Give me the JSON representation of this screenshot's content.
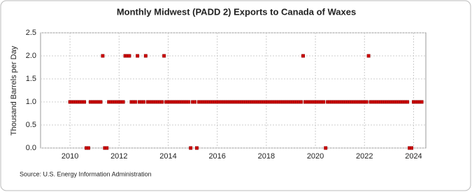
{
  "chart_data": {
    "type": "scatter",
    "title": "Monthly Midwest (PADD 2) Exports to Canada of Waxes",
    "y_label": "Thousand Barrels per Day",
    "source": "Source: U.S. Energy Information Administration",
    "xlim": [
      2008.8,
      2024.5
    ],
    "xticks": [
      2010,
      2012,
      2014,
      2016,
      2018,
      2020,
      2022,
      2024
    ],
    "ylim": [
      0,
      2.5
    ],
    "yticks": [
      {
        "value": 0,
        "label": "0.0"
      },
      {
        "value": 0.5,
        "label": "0.5"
      },
      {
        "value": 1,
        "label": "1.0"
      },
      {
        "value": 1.5,
        "label": "1.5"
      },
      {
        "value": 2,
        "label": "2.0"
      },
      {
        "value": 2.5,
        "label": "2.5"
      }
    ],
    "grid": true,
    "series": [
      {
        "color": "#cc0000",
        "x": [
          2010,
          2010.083,
          2010.167,
          2010.25,
          2010.333,
          2010.417,
          2010.5,
          2010.583,
          2010.667,
          2010.75,
          2010.833,
          2010.917,
          2011,
          2011.083,
          2011.167,
          2011.25,
          2011.333,
          2011.417,
          2011.5,
          2011.583,
          2011.667,
          2011.75,
          2011.833,
          2011.917,
          2012,
          2012.083,
          2012.167,
          2012.25,
          2012.333,
          2012.417,
          2012.5,
          2012.583,
          2012.667,
          2012.75,
          2012.833,
          2012.917,
          2013,
          2013.083,
          2013.167,
          2013.25,
          2013.333,
          2013.417,
          2013.5,
          2013.583,
          2013.667,
          2013.75,
          2013.833,
          2013.917,
          2014,
          2014.083,
          2014.167,
          2014.25,
          2014.333,
          2014.417,
          2014.5,
          2014.583,
          2014.667,
          2014.75,
          2014.833,
          2014.917,
          2015,
          2015.083,
          2015.167,
          2015.25,
          2015.333,
          2015.417,
          2015.5,
          2015.583,
          2015.667,
          2015.75,
          2015.833,
          2015.917,
          2016,
          2016.083,
          2016.167,
          2016.25,
          2016.333,
          2016.417,
          2016.5,
          2016.583,
          2016.667,
          2016.75,
          2016.833,
          2016.917,
          2017,
          2017.083,
          2017.167,
          2017.25,
          2017.333,
          2017.417,
          2017.5,
          2017.583,
          2017.667,
          2017.75,
          2017.833,
          2017.917,
          2018,
          2018.083,
          2018.167,
          2018.25,
          2018.333,
          2018.417,
          2018.5,
          2018.583,
          2018.667,
          2018.75,
          2018.833,
          2018.917,
          2019,
          2019.083,
          2019.167,
          2019.25,
          2019.333,
          2019.417,
          2019.5,
          2019.583,
          2019.667,
          2019.75,
          2019.833,
          2019.917,
          2020,
          2020.083,
          2020.167,
          2020.25,
          2020.333,
          2020.417,
          2020.5,
          2020.583,
          2020.667,
          2020.75,
          2020.833,
          2020.917,
          2021,
          2021.083,
          2021.167,
          2021.25,
          2021.333,
          2021.417,
          2021.5,
          2021.583,
          2021.667,
          2021.75,
          2021.833,
          2021.917,
          2022,
          2022.083,
          2022.167,
          2022.25,
          2022.333,
          2022.417,
          2022.5,
          2022.583,
          2022.667,
          2022.75,
          2022.833,
          2022.917,
          2023,
          2023.083,
          2023.167,
          2023.25,
          2023.333,
          2023.417,
          2023.5,
          2023.583,
          2023.667,
          2023.75,
          2023.833,
          2023.917,
          2024,
          2024.083,
          2024.167,
          2024.25,
          2024.333
        ],
        "values": [
          1,
          1,
          1,
          1,
          1,
          1,
          1,
          1,
          0,
          0,
          1,
          1,
          1,
          1,
          1,
          1,
          2,
          0,
          0,
          1,
          1,
          1,
          1,
          1,
          1,
          1,
          1,
          2,
          2,
          2,
          1,
          1,
          1,
          2,
          1,
          1,
          1,
          2,
          1,
          1,
          1,
          1,
          1,
          1,
          1,
          1,
          2,
          1,
          1,
          1,
          1,
          1,
          1,
          1,
          1,
          1,
          1,
          1,
          1,
          0,
          1,
          1,
          0,
          1,
          1,
          1,
          1,
          1,
          1,
          1,
          1,
          1,
          1,
          1,
          1,
          1,
          1,
          1,
          1,
          1,
          1,
          1,
          1,
          1,
          1,
          1,
          1,
          1,
          1,
          1,
          1,
          1,
          1,
          1,
          1,
          1,
          1,
          1,
          1,
          1,
          1,
          1,
          1,
          1,
          1,
          1,
          1,
          1,
          1,
          1,
          1,
          1,
          1,
          1,
          2,
          1,
          1,
          1,
          1,
          1,
          1,
          1,
          1,
          1,
          1,
          0,
          1,
          1,
          1,
          1,
          1,
          1,
          1,
          1,
          1,
          1,
          1,
          1,
          1,
          1,
          1,
          1,
          1,
          1,
          1,
          1,
          2,
          1,
          1,
          1,
          1,
          1,
          1,
          1,
          1,
          1,
          1,
          1,
          1,
          1,
          1,
          1,
          1,
          1,
          1,
          1,
          0,
          0,
          1,
          1,
          1,
          1,
          1
        ]
      }
    ]
  }
}
